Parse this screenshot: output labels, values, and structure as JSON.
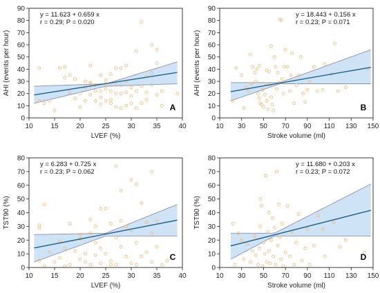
{
  "colors": {
    "band": "#cfe3f7",
    "band_edge": "#8a8fb0",
    "fit": "#1e5f88",
    "point": "#e8b870",
    "axis": "#222222"
  },
  "chart_data": [
    {
      "type": "scatter",
      "panel": "A",
      "xlabel": "LVEF (%)",
      "ylabel": "AHI (events per hour)",
      "xlim": [
        10,
        40
      ],
      "ylim": [
        0,
        90
      ],
      "xticks": [
        10,
        15,
        20,
        25,
        30,
        35,
        40
      ],
      "yticks": [
        0,
        10,
        20,
        30,
        40,
        50,
        60,
        70,
        80,
        90
      ],
      "equation": "y = 11.623  +  0.659  x",
      "stats": "r = 0.29; P = 0.020",
      "fit": {
        "intercept": 11.623,
        "slope": 0.659,
        "x_range": [
          11,
          39
        ]
      },
      "ci_upper": [
        [
          11,
          26
        ],
        [
          25,
          28
        ],
        [
          39,
          46
        ]
      ],
      "ci_lower": [
        [
          11,
          12
        ],
        [
          25,
          26
        ],
        [
          39,
          28
        ]
      ],
      "points": [
        [
          12,
          41
        ],
        [
          12,
          14
        ],
        [
          13,
          12
        ],
        [
          14,
          14
        ],
        [
          15,
          6
        ],
        [
          16,
          41
        ],
        [
          17,
          42
        ],
        [
          17,
          33
        ],
        [
          18,
          35
        ],
        [
          18,
          21
        ],
        [
          19,
          32
        ],
        [
          19,
          16
        ],
        [
          20,
          20
        ],
        [
          20,
          9
        ],
        [
          21,
          30
        ],
        [
          21,
          25
        ],
        [
          21,
          14
        ],
        [
          22,
          43
        ],
        [
          22,
          29
        ],
        [
          22,
          28
        ],
        [
          22,
          19
        ],
        [
          23,
          27
        ],
        [
          23,
          22
        ],
        [
          23,
          14
        ],
        [
          24,
          35
        ],
        [
          24,
          22
        ],
        [
          24,
          17
        ],
        [
          25,
          31
        ],
        [
          25,
          28
        ],
        [
          25,
          24
        ],
        [
          25,
          14
        ],
        [
          26,
          36
        ],
        [
          26,
          28
        ],
        [
          26,
          22
        ],
        [
          26,
          15
        ],
        [
          26,
          12
        ],
        [
          27,
          41
        ],
        [
          27,
          27
        ],
        [
          27,
          20
        ],
        [
          27,
          9
        ],
        [
          28,
          41
        ],
        [
          28,
          27
        ],
        [
          28,
          20
        ],
        [
          28,
          8
        ],
        [
          29,
          43
        ],
        [
          29,
          30
        ],
        [
          29,
          21
        ],
        [
          29,
          10
        ],
        [
          30,
          25
        ],
        [
          30,
          18
        ],
        [
          30,
          12
        ],
        [
          31,
          22
        ],
        [
          31,
          8
        ],
        [
          32,
          79
        ],
        [
          32,
          26
        ],
        [
          32,
          12
        ],
        [
          33,
          34
        ],
        [
          33,
          21
        ],
        [
          33,
          15
        ],
        [
          34,
          60
        ],
        [
          34,
          37
        ],
        [
          34,
          27
        ],
        [
          35,
          56
        ],
        [
          35,
          45
        ],
        [
          35,
          19
        ],
        [
          36,
          22
        ],
        [
          36,
          10
        ],
        [
          39,
          20
        ],
        [
          31,
          55
        ],
        [
          24,
          11
        ]
      ]
    },
    {
      "type": "scatter",
      "panel": "B",
      "xlabel": "Stroke volume (ml)",
      "ylabel": "AHI (events per hour)",
      "xlim": [
        10,
        150
      ],
      "ylim": [
        0,
        90
      ],
      "xticks": [
        10,
        30,
        50,
        70,
        90,
        110,
        130,
        150
      ],
      "yticks": [
        0,
        10,
        20,
        30,
        40,
        50,
        60,
        70,
        80,
        90
      ],
      "equation": "y = 18.443  +  0.156  x",
      "stats": "r = 0.23; P = 0.071",
      "fit": {
        "intercept": 18.443,
        "slope": 0.156,
        "x_range": [
          20,
          148
        ]
      },
      "ci_upper": [
        [
          20,
          29
        ],
        [
          65,
          29
        ],
        [
          148,
          56
        ]
      ],
      "ci_lower": [
        [
          20,
          14
        ],
        [
          65,
          28
        ],
        [
          148,
          28
        ]
      ],
      "points": [
        [
          22,
          14
        ],
        [
          25,
          41
        ],
        [
          30,
          35
        ],
        [
          32,
          8
        ],
        [
          34,
          25
        ],
        [
          36,
          22
        ],
        [
          38,
          52
        ],
        [
          39,
          28
        ],
        [
          40,
          42
        ],
        [
          42,
          37
        ],
        [
          43,
          30
        ],
        [
          44,
          40
        ],
        [
          45,
          20
        ],
        [
          46,
          43
        ],
        [
          46,
          16
        ],
        [
          47,
          12
        ],
        [
          48,
          11
        ],
        [
          49,
          23
        ],
        [
          50,
          9
        ],
        [
          51,
          19
        ],
        [
          52,
          28
        ],
        [
          53,
          39
        ],
        [
          53,
          14
        ],
        [
          54,
          7
        ],
        [
          55,
          38
        ],
        [
          56,
          27
        ],
        [
          57,
          17
        ],
        [
          58,
          11
        ],
        [
          59,
          6
        ],
        [
          60,
          50
        ],
        [
          61,
          42
        ],
        [
          62,
          24
        ],
        [
          63,
          37
        ],
        [
          64,
          29
        ],
        [
          65,
          81
        ],
        [
          66,
          80
        ],
        [
          67,
          32
        ],
        [
          68,
          20
        ],
        [
          69,
          42
        ],
        [
          70,
          56
        ],
        [
          72,
          42
        ],
        [
          74,
          22
        ],
        [
          75,
          35
        ],
        [
          76,
          53
        ],
        [
          78,
          12
        ],
        [
          80,
          27
        ],
        [
          82,
          35
        ],
        [
          84,
          50
        ],
        [
          86,
          20
        ],
        [
          88,
          13
        ],
        [
          90,
          23
        ],
        [
          92,
          30
        ],
        [
          96,
          42
        ],
        [
          99,
          22
        ],
        [
          104,
          23
        ],
        [
          106,
          44
        ],
        [
          112,
          36
        ],
        [
          115,
          61
        ],
        [
          118,
          22
        ],
        [
          125,
          25
        ],
        [
          145,
          40
        ],
        [
          57,
          59
        ]
      ]
    },
    {
      "type": "scatter",
      "panel": "C",
      "xlabel": "LVEF (%)",
      "ylabel": "TST90 (%)",
      "xlim": [
        10,
        40
      ],
      "ylim": [
        0,
        80
      ],
      "xticks": [
        10,
        15,
        20,
        25,
        30,
        35,
        40
      ],
      "yticks": [
        0,
        10,
        20,
        30,
        40,
        50,
        60,
        70,
        80
      ],
      "equation": "y = 6.283  +  0.725  x",
      "stats": "r = 0.23; P = 0.062",
      "fit": {
        "intercept": 6.283,
        "slope": 0.725,
        "x_range": [
          11,
          39
        ]
      },
      "ci_upper": [
        [
          11,
          24
        ],
        [
          25,
          25
        ],
        [
          39,
          46
        ]
      ],
      "ci_lower": [
        [
          11,
          4
        ],
        [
          25,
          23
        ],
        [
          39,
          23
        ]
      ],
      "points": [
        [
          12,
          31
        ],
        [
          12,
          29
        ],
        [
          12,
          5
        ],
        [
          13,
          1
        ],
        [
          13,
          46
        ],
        [
          14,
          11
        ],
        [
          15,
          4
        ],
        [
          16,
          19
        ],
        [
          17,
          14
        ],
        [
          17,
          1
        ],
        [
          18,
          32
        ],
        [
          18,
          2
        ],
        [
          19,
          12
        ],
        [
          20,
          6
        ],
        [
          20,
          24
        ],
        [
          21,
          10
        ],
        [
          21,
          4
        ],
        [
          22,
          35
        ],
        [
          22,
          25
        ],
        [
          22,
          2
        ],
        [
          23,
          18
        ],
        [
          23,
          9
        ],
        [
          24,
          14
        ],
        [
          24,
          3
        ],
        [
          25,
          43
        ],
        [
          25,
          10
        ],
        [
          26,
          32
        ],
        [
          26,
          5
        ],
        [
          26,
          2
        ],
        [
          27,
          74
        ],
        [
          27,
          22
        ],
        [
          27,
          2
        ],
        [
          28,
          56
        ],
        [
          28,
          15
        ],
        [
          29,
          30
        ],
        [
          29,
          8
        ],
        [
          30,
          64
        ],
        [
          30,
          27
        ],
        [
          30,
          3
        ],
        [
          31,
          18
        ],
        [
          31,
          2
        ],
        [
          32,
          47
        ],
        [
          32,
          8
        ],
        [
          33,
          33
        ],
        [
          33,
          11
        ],
        [
          34,
          70
        ],
        [
          34,
          25
        ],
        [
          34,
          4
        ],
        [
          35,
          34
        ],
        [
          35,
          15
        ],
        [
          36,
          2
        ],
        [
          37,
          5
        ],
        [
          24,
          43
        ],
        [
          28,
          34
        ],
        [
          31,
          61
        ],
        [
          20,
          21
        ],
        [
          16,
          7
        ],
        [
          23,
          30
        ]
      ]
    },
    {
      "type": "scatter",
      "panel": "D",
      "xlabel": "Stroke volume (ml)",
      "ylabel": "TST90 (%)",
      "xlim": [
        10,
        150
      ],
      "ylim": [
        0,
        80
      ],
      "xticks": [
        10,
        30,
        50,
        70,
        90,
        110,
        130,
        150
      ],
      "yticks": [
        0,
        10,
        20,
        30,
        40,
        50,
        60,
        70,
        80
      ],
      "equation": "y = 11.680  +  0.203  x",
      "stats": "r = 0.23; P = 0.072",
      "fit": {
        "intercept": 11.68,
        "slope": 0.203,
        "x_range": [
          20,
          148
        ]
      },
      "ci_upper": [
        [
          20,
          25
        ],
        [
          60,
          25
        ],
        [
          148,
          61
        ]
      ],
      "ci_lower": [
        [
          20,
          6
        ],
        [
          60,
          23
        ],
        [
          148,
          23
        ]
      ],
      "points": [
        [
          22,
          32
        ],
        [
          24,
          2
        ],
        [
          27,
          25
        ],
        [
          30,
          20
        ],
        [
          32,
          6
        ],
        [
          35,
          17
        ],
        [
          38,
          4
        ],
        [
          40,
          12
        ],
        [
          42,
          23
        ],
        [
          43,
          9
        ],
        [
          45,
          2
        ],
        [
          46,
          14
        ],
        [
          47,
          30
        ],
        [
          48,
          45
        ],
        [
          49,
          1
        ],
        [
          50,
          18
        ],
        [
          51,
          10
        ],
        [
          52,
          67
        ],
        [
          53,
          4
        ],
        [
          54,
          26
        ],
        [
          55,
          12
        ],
        [
          56,
          3
        ],
        [
          57,
          20
        ],
        [
          58,
          36
        ],
        [
          59,
          8
        ],
        [
          60,
          29
        ],
        [
          61,
          2
        ],
        [
          62,
          70
        ],
        [
          63,
          16
        ],
        [
          64,
          46
        ],
        [
          65,
          22
        ],
        [
          66,
          6
        ],
        [
          67,
          32
        ],
        [
          68,
          1
        ],
        [
          70,
          11
        ],
        [
          72,
          45
        ],
        [
          74,
          8
        ],
        [
          76,
          26
        ],
        [
          78,
          2
        ],
        [
          80,
          18
        ],
        [
          82,
          39
        ],
        [
          85,
          5
        ],
        [
          88,
          14
        ],
        [
          90,
          28
        ],
        [
          92,
          2
        ],
        [
          96,
          16
        ],
        [
          100,
          38
        ],
        [
          104,
          28
        ],
        [
          106,
          8
        ],
        [
          114,
          33
        ],
        [
          120,
          15
        ],
        [
          125,
          20
        ],
        [
          142,
          11
        ],
        [
          55,
          40
        ],
        [
          47,
          50
        ]
      ]
    }
  ]
}
